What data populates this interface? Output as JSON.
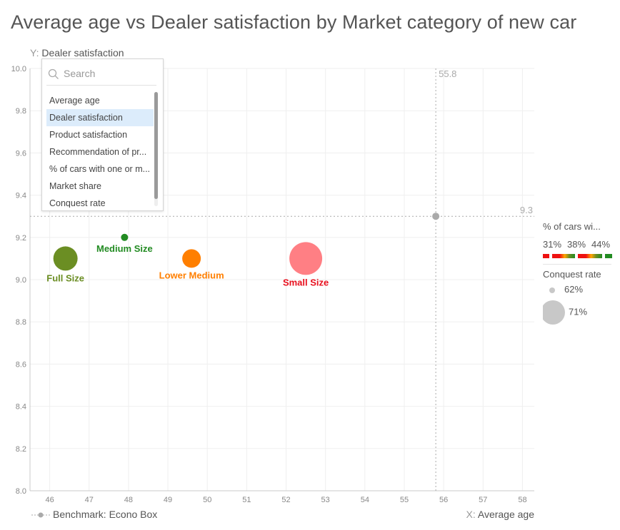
{
  "page": {
    "title": "Average age vs Dealer satisfaction by Market category of new car",
    "y_axis_prefix": "Y:",
    "y_axis_name": "Dealer satisfaction",
    "x_axis_prefix": "X:",
    "x_axis_name": "Average age",
    "benchmark_label": "Benchmark: Econo Box"
  },
  "dropdown": {
    "search_placeholder": "Search",
    "options": [
      "Average age",
      "Dealer satisfaction",
      "Product satisfaction",
      "Recommendation of pr...",
      "% of cars with one or m...",
      "Market share",
      "Conquest rate"
    ],
    "selected_index": 1
  },
  "legend": {
    "color_title": "% of cars wi...",
    "color_ticks": [
      "31%",
      "38%",
      "44%"
    ],
    "size_title": "Conquest rate",
    "size_labels": [
      "62%",
      "71%"
    ]
  },
  "chart_data": {
    "type": "scatter",
    "title": "Average age vs Dealer satisfaction by Market category of new car",
    "xlabel": "Average age",
    "ylabel": "Dealer satisfaction",
    "xlim": [
      45.5,
      58.3
    ],
    "ylim": [
      8.0,
      10.0
    ],
    "x_ticks": [
      46,
      47,
      48,
      49,
      50,
      51,
      52,
      53,
      54,
      55,
      56,
      57,
      58
    ],
    "y_ticks": [
      8.0,
      8.2,
      8.4,
      8.6,
      8.8,
      9.0,
      9.2,
      9.4,
      9.6,
      9.8,
      10.0
    ],
    "grid": true,
    "points": [
      {
        "label": "Full Size",
        "x": 46.4,
        "y": 9.1,
        "conquest_rate": 68,
        "color": "#6b8e23"
      },
      {
        "label": "Medium Size",
        "x": 47.9,
        "y": 9.2,
        "conquest_rate": 62,
        "color": "#228b22"
      },
      {
        "label": "Lower Medium",
        "x": 49.6,
        "y": 9.1,
        "conquest_rate": 66,
        "color": "#ff7f00"
      },
      {
        "label": "Small Size",
        "x": 52.5,
        "y": 9.1,
        "conquest_rate": 71,
        "color": "#ff7f84"
      }
    ],
    "label_colors": {
      "Full Size": "#6b8e23",
      "Medium Size": "#228b22",
      "Lower Medium": "#ff7f00",
      "Small Size": "#e8101e"
    },
    "benchmark": {
      "name": "Econo Box",
      "x": 55.8,
      "y": 9.3,
      "x_label": "55.8",
      "y_label": "9.3"
    }
  }
}
